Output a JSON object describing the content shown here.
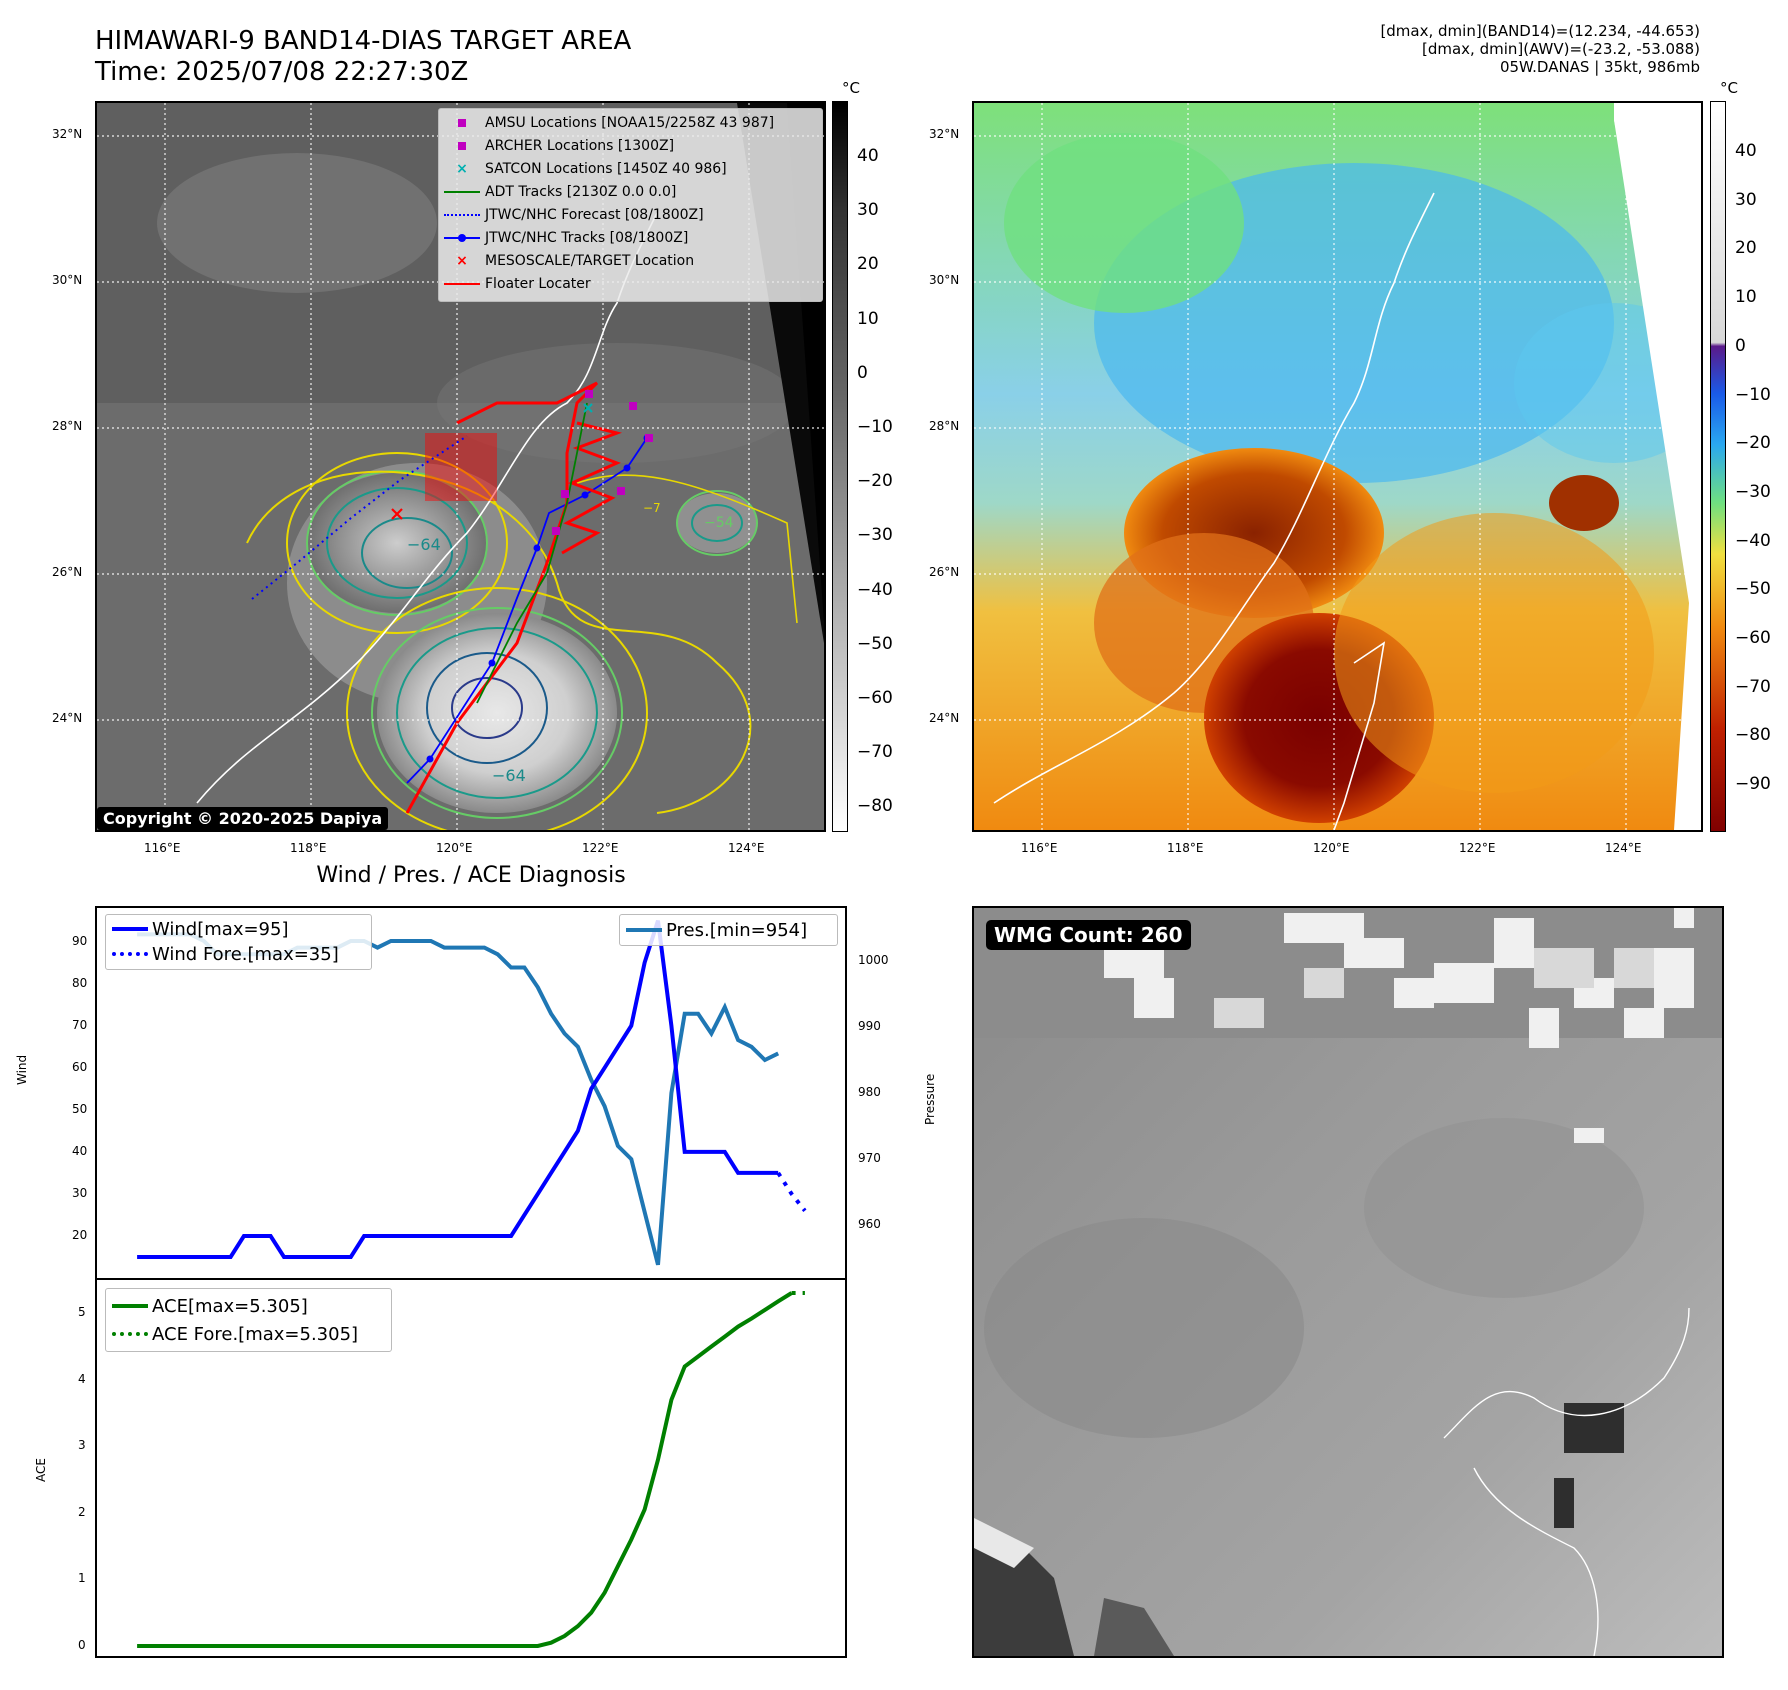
{
  "header": {
    "title_line1": "HIMAWARI-9 BAND14-DIAS TARGET AREA",
    "title_line2": "Time: 2025/07/08 22:27:30Z",
    "info_line1": "[dmax, dmin](BAND14)=(12.234, -44.653)",
    "info_line2": "[dmax, dmin](AWV)=(-23.2, -53.088)",
    "info_line3": "05W.DANAS | 35kt, 986mb"
  },
  "map_axes": {
    "lat_labels": [
      "32°N",
      "30°N",
      "28°N",
      "26°N",
      "24°N"
    ],
    "lon_labels": [
      "116°E",
      "118°E",
      "120°E",
      "122°E",
      "124°E"
    ]
  },
  "ir_panel": {
    "colorbar_unit": "°C",
    "colorbar_ticks": [
      "40",
      "30",
      "20",
      "10",
      "0",
      "−10",
      "−20",
      "−30",
      "−40",
      "−50",
      "−60",
      "−70",
      "−80"
    ],
    "contour_labels": [
      "−64",
      "−64",
      "−54",
      "−7"
    ],
    "copyright": "Copyright © 2020-2025 Dapiya",
    "legend": [
      {
        "label": "AMSU Locations [NOAA15/2258Z 43 987]",
        "symbol": "square",
        "color": "#c000c0"
      },
      {
        "label": "ARCHER Locations [1300Z]",
        "symbol": "square",
        "color": "#c000c0"
      },
      {
        "label": "SATCON Locations [1450Z 40 986]",
        "symbol": "x",
        "color": "#00b0b0"
      },
      {
        "label": "ADT Tracks [2130Z 0.0 0.0]",
        "symbol": "line",
        "color": "#008000"
      },
      {
        "label": "JTWC/NHC Forecast [08/1800Z]",
        "symbol": "dotted",
        "color": "#0000ff"
      },
      {
        "label": "JTWC/NHC Tracks [08/1800Z]",
        "symbol": "line-dot",
        "color": "#0000ff"
      },
      {
        "label": "MESOSCALE/TARGET Location",
        "symbol": "x",
        "color": "#ff0000"
      },
      {
        "label": "Floater Locater",
        "symbol": "line",
        "color": "#ff0000"
      }
    ]
  },
  "awv_panel": {
    "colorbar_unit": "°C",
    "colorbar_ticks": [
      "40",
      "30",
      "20",
      "10",
      "0",
      "−10",
      "−20",
      "−30",
      "−40",
      "−50",
      "−60",
      "−70",
      "−80",
      "−90"
    ]
  },
  "wmg_panel": {
    "badge": "WMG Count: 260"
  },
  "chart_data": [
    {
      "type": "line",
      "title": "Wind / Pres. / ACE Diagnosis",
      "ylabel": "Wind",
      "ylabel_right": "Pressure",
      "ylim": [
        10,
        98
      ],
      "ylim_right": [
        952,
        1008
      ],
      "y_ticks": [
        20,
        30,
        40,
        50,
        60,
        70,
        80,
        90
      ],
      "y_ticks_right": [
        960,
        970,
        980,
        990,
        1000
      ],
      "x": [
        0,
        1,
        2,
        3,
        4,
        5,
        6,
        7,
        8,
        9,
        10,
        11,
        12,
        13,
        14,
        15,
        16,
        17,
        18,
        19,
        20,
        21,
        22,
        23,
        24,
        25,
        26,
        27,
        28,
        29,
        30,
        31,
        32,
        33,
        34,
        35,
        36,
        37,
        38,
        39,
        40,
        41,
        42,
        43,
        44,
        45,
        46,
        47,
        48,
        49,
        50
      ],
      "series": [
        {
          "name": "Wind[max=95]",
          "color": "#0000ff",
          "style": "solid",
          "values": [
            15,
            15,
            15,
            15,
            15,
            15,
            15,
            15,
            20,
            20,
            20,
            15,
            15,
            15,
            15,
            15,
            15,
            20,
            20,
            20,
            20,
            20,
            20,
            20,
            20,
            20,
            20,
            20,
            20,
            25,
            30,
            35,
            40,
            45,
            55,
            60,
            65,
            70,
            85,
            95,
            70,
            40,
            40,
            40,
            40,
            35,
            35,
            35,
            35,
            null,
            null
          ]
        },
        {
          "name": "Wind Fore.[max=35]",
          "color": "#0000ff",
          "style": "dotted",
          "values": [
            null,
            null,
            null,
            null,
            null,
            null,
            null,
            null,
            null,
            null,
            null,
            null,
            null,
            null,
            null,
            null,
            null,
            null,
            null,
            null,
            null,
            null,
            null,
            null,
            null,
            null,
            null,
            null,
            null,
            null,
            null,
            null,
            null,
            null,
            null,
            null,
            null,
            null,
            null,
            null,
            null,
            null,
            null,
            null,
            null,
            null,
            null,
            null,
            35,
            30,
            26
          ]
        },
        {
          "name": "Pres.[min=954]",
          "color": "#1f77b4",
          "style": "solid",
          "axis": "right",
          "values": [
            1004,
            1004,
            1004,
            1004,
            1004,
            1003,
            1001,
            1001,
            1001,
            1001,
            1001,
            1001,
            1002,
            1002,
            1002,
            1002,
            1003,
            1003,
            1002,
            1003,
            1003,
            1003,
            1003,
            1002,
            1002,
            1002,
            1002,
            1001,
            999,
            999,
            996,
            992,
            989,
            987,
            982,
            978,
            972,
            970,
            962,
            954,
            980,
            992,
            992,
            989,
            993,
            988,
            987,
            985,
            986,
            null,
            null
          ]
        }
      ]
    },
    {
      "type": "line",
      "ylabel": "ACE",
      "ylim": [
        -0.15,
        5.5
      ],
      "y_ticks": [
        0,
        1,
        2,
        3,
        4,
        5
      ],
      "x": [
        0,
        1,
        2,
        3,
        4,
        5,
        6,
        7,
        8,
        9,
        10,
        11,
        12,
        13,
        14,
        15,
        16,
        17,
        18,
        19,
        20,
        21,
        22,
        23,
        24,
        25,
        26,
        27,
        28,
        29,
        30,
        31,
        32,
        33,
        34,
        35,
        36,
        37,
        38,
        39,
        40,
        41,
        42,
        43,
        44,
        45,
        46,
        47,
        48,
        49,
        50
      ],
      "series": [
        {
          "name": "ACE[max=5.305]",
          "color": "#008000",
          "style": "solid",
          "values": [
            0,
            0,
            0,
            0,
            0,
            0,
            0,
            0,
            0,
            0,
            0,
            0,
            0,
            0,
            0,
            0,
            0,
            0,
            0,
            0,
            0,
            0,
            0,
            0,
            0,
            0,
            0,
            0,
            0,
            0,
            0,
            0.05,
            0.15,
            0.3,
            0.5,
            0.8,
            1.2,
            1.6,
            2.05,
            2.8,
            3.7,
            4.2,
            4.35,
            4.5,
            4.65,
            4.8,
            4.92,
            5.05,
            5.18,
            5.305,
            null
          ]
        },
        {
          "name": "ACE Fore.[max=5.305]",
          "color": "#008000",
          "style": "dotted",
          "values": [
            null,
            null,
            null,
            null,
            null,
            null,
            null,
            null,
            null,
            null,
            null,
            null,
            null,
            null,
            null,
            null,
            null,
            null,
            null,
            null,
            null,
            null,
            null,
            null,
            null,
            null,
            null,
            null,
            null,
            null,
            null,
            null,
            null,
            null,
            null,
            null,
            null,
            null,
            null,
            null,
            null,
            null,
            null,
            null,
            null,
            null,
            null,
            null,
            null,
            5.305,
            5.305
          ]
        }
      ]
    }
  ]
}
